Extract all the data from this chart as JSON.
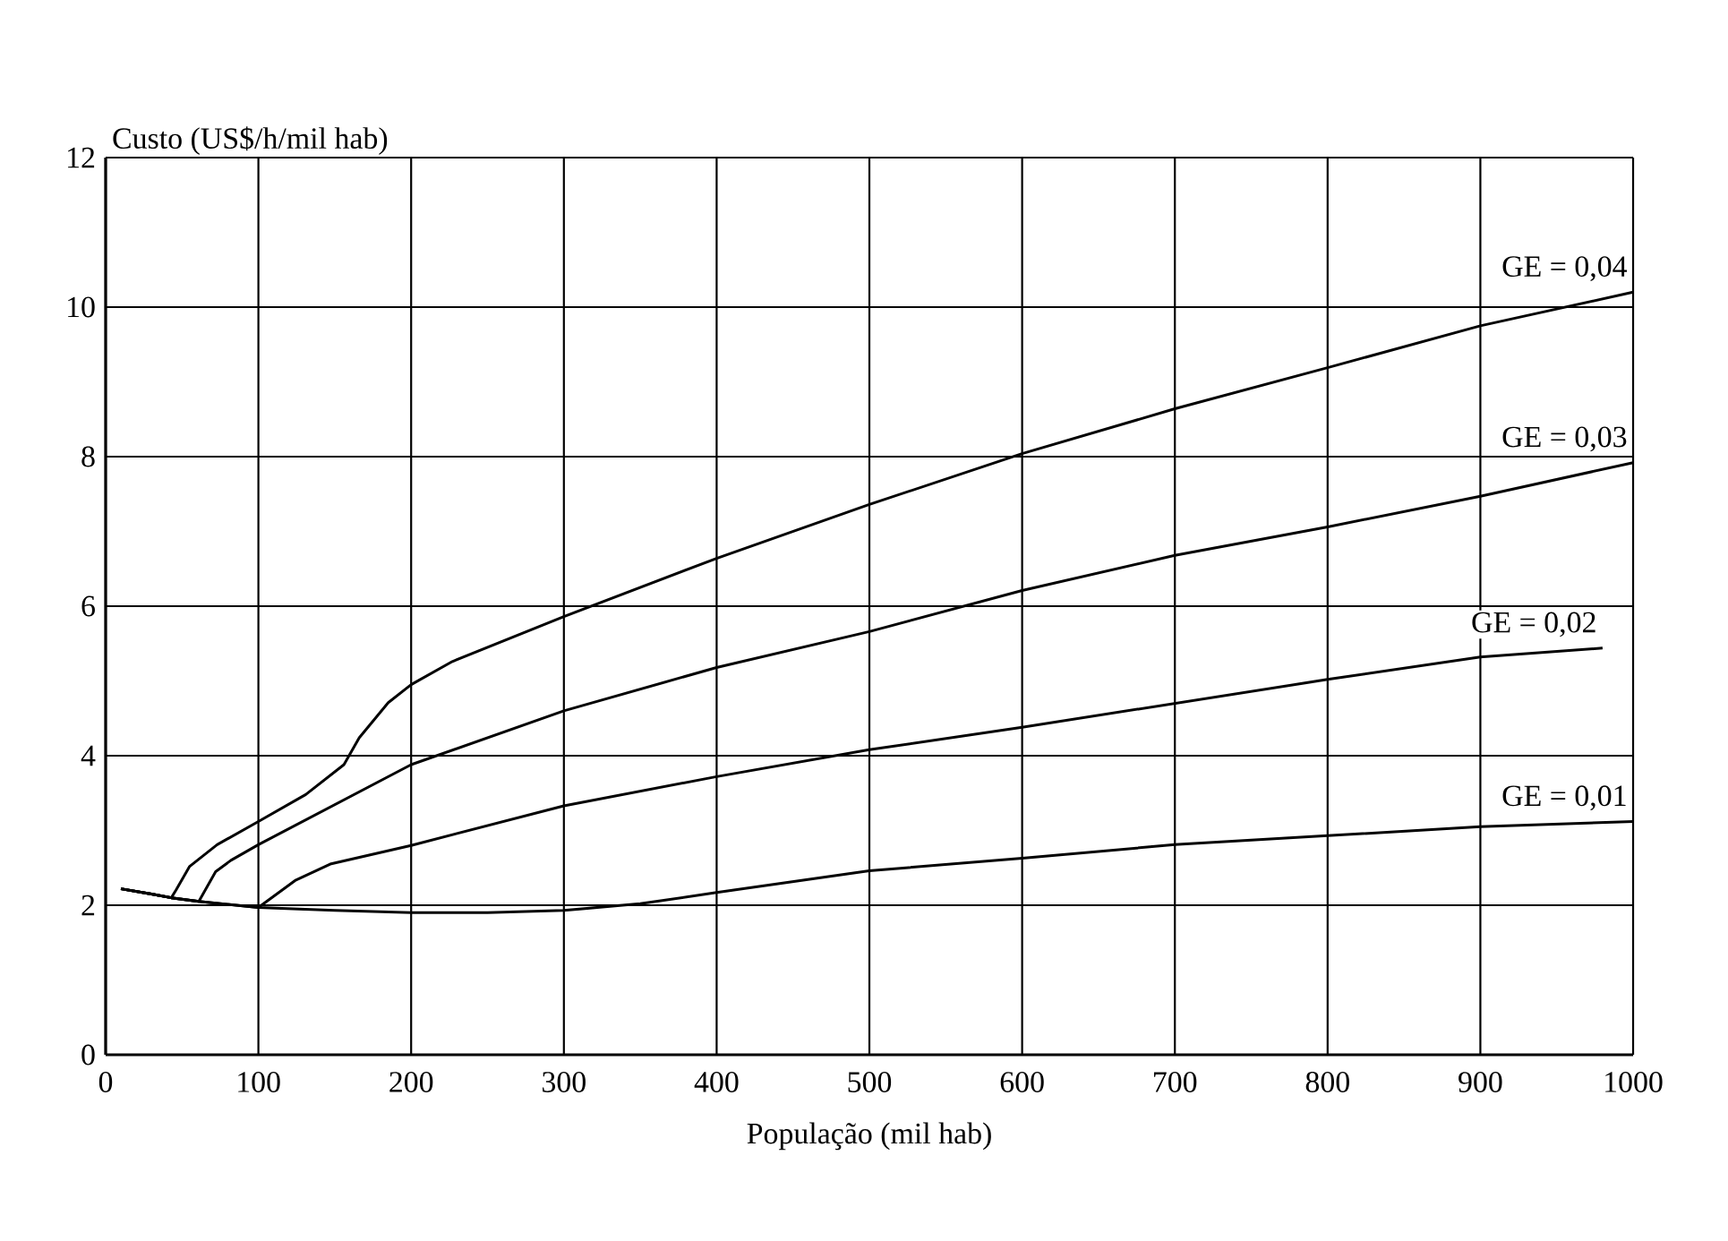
{
  "chart_data": {
    "type": "line",
    "xlabel": "População (mil hab)",
    "ylabel": "Custo (US$/h/mil hab)",
    "xlim": [
      0,
      1000
    ],
    "xticks": [
      0,
      100,
      200,
      300,
      400,
      500,
      600,
      700,
      800,
      900,
      1000
    ],
    "ylim": [
      0,
      12
    ],
    "yticks": [
      0,
      2,
      4,
      6,
      8,
      10,
      12
    ],
    "grid": true,
    "marker": "none",
    "line_style": "solid",
    "series": [
      {
        "color": "#000000",
        "x": [
          10,
          30,
          43,
          61,
          100,
          150,
          200,
          250,
          300,
          350,
          400,
          500,
          600,
          700,
          800,
          900,
          1000
        ],
        "values": [
          2.22,
          2.15,
          2.1,
          2.05,
          1.97,
          1.93,
          1.9,
          1.9,
          1.93,
          2.02,
          2.17,
          2.46,
          2.63,
          2.81,
          2.93,
          3.05,
          3.12
        ]
      },
      {
        "color": "#000000",
        "x": [
          10,
          30,
          43,
          61,
          100,
          124,
          147,
          200,
          300,
          400,
          500,
          600,
          700,
          800,
          900,
          980
        ],
        "values": [
          2.22,
          2.15,
          2.1,
          2.05,
          1.97,
          2.33,
          2.55,
          2.8,
          3.33,
          3.72,
          4.08,
          4.38,
          4.7,
          5.02,
          5.32,
          5.44
        ]
      },
      {
        "color": "#000000",
        "x": [
          10,
          30,
          43,
          61,
          72,
          82,
          100,
          200,
          300,
          400,
          500,
          600,
          700,
          800,
          900,
          1000
        ],
        "values": [
          2.22,
          2.15,
          2.1,
          2.05,
          2.45,
          2.6,
          2.81,
          3.88,
          4.6,
          5.18,
          5.66,
          6.21,
          6.68,
          7.06,
          7.47,
          7.92
        ]
      },
      {
        "color": "#000000",
        "x": [
          10,
          30,
          43,
          46,
          55,
          73,
          100,
          131,
          156,
          166,
          185,
          200,
          227,
          300,
          400,
          500,
          600,
          700,
          800,
          900,
          1000
        ],
        "values": [
          2.22,
          2.15,
          2.1,
          2.2,
          2.52,
          2.81,
          3.12,
          3.48,
          3.88,
          4.24,
          4.71,
          4.95,
          5.26,
          5.86,
          6.64,
          7.36,
          8.04,
          8.64,
          9.19,
          9.75,
          10.2
        ]
      }
    ],
    "annotations": [
      "GE = 0,01",
      "GE = 0,02",
      "GE = 0,03",
      "GE = 0,04"
    ]
  }
}
